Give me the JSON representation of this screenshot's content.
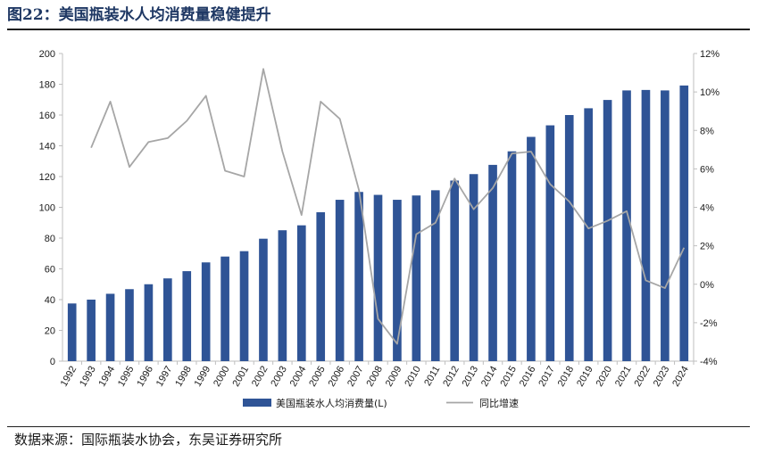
{
  "figure": {
    "title": "图22：美国瓶装水人均消费量稳健提升",
    "source": "数据来源：国际瓶装水协会，东吴证券研究所"
  },
  "colors": {
    "bar": "#2f5496",
    "line": "#a6a6a6",
    "axis": "#bfbfbf",
    "title": "#1f3864"
  },
  "chart_data": {
    "type": "bar",
    "categories": [
      "1992",
      "1993",
      "1994",
      "1995",
      "1996",
      "1997",
      "1998",
      "1999",
      "2000",
      "2001",
      "2002",
      "2003",
      "2004",
      "2005",
      "2006",
      "2007",
      "2008",
      "2009",
      "2010",
      "2011",
      "2012",
      "2013",
      "2014",
      "2015",
      "2016",
      "2017",
      "2018",
      "2019",
      "2020",
      "2021",
      "2022",
      "2023",
      "2024"
    ],
    "series": [
      {
        "name": "美国瓶装水人均消费量(L)",
        "type": "bar",
        "axis": "left",
        "values": [
          37.5,
          40,
          43.8,
          46.8,
          50,
          53.8,
          58.5,
          64.2,
          68,
          71.5,
          79.6,
          85.1,
          88.3,
          96.8,
          104.9,
          110,
          108.1,
          104.9,
          107.7,
          111.1,
          117.4,
          121.6,
          127.6,
          136.4,
          145.8,
          153.3,
          160,
          164.4,
          169.8,
          176,
          176.3,
          176,
          179.2
        ]
      },
      {
        "name": "同比增速",
        "type": "line",
        "axis": "right",
        "values": [
          null,
          7.1,
          9.5,
          6.1,
          7.4,
          7.6,
          8.5,
          9.8,
          5.9,
          5.6,
          11.2,
          6.9,
          3.6,
          9.5,
          8.6,
          4.9,
          -1.8,
          -3.1,
          2.6,
          3.2,
          5.5,
          3.9,
          5.0,
          6.8,
          6.9,
          5.2,
          4.3,
          2.9,
          3.3,
          3.8,
          0.2,
          -0.2,
          1.9
        ]
      }
    ],
    "y_left": {
      "min": 0,
      "max": 200,
      "step": 20
    },
    "y_right": {
      "min": -4,
      "max": 12,
      "step": 2,
      "unit": "%"
    },
    "legend_position": "bottom"
  }
}
